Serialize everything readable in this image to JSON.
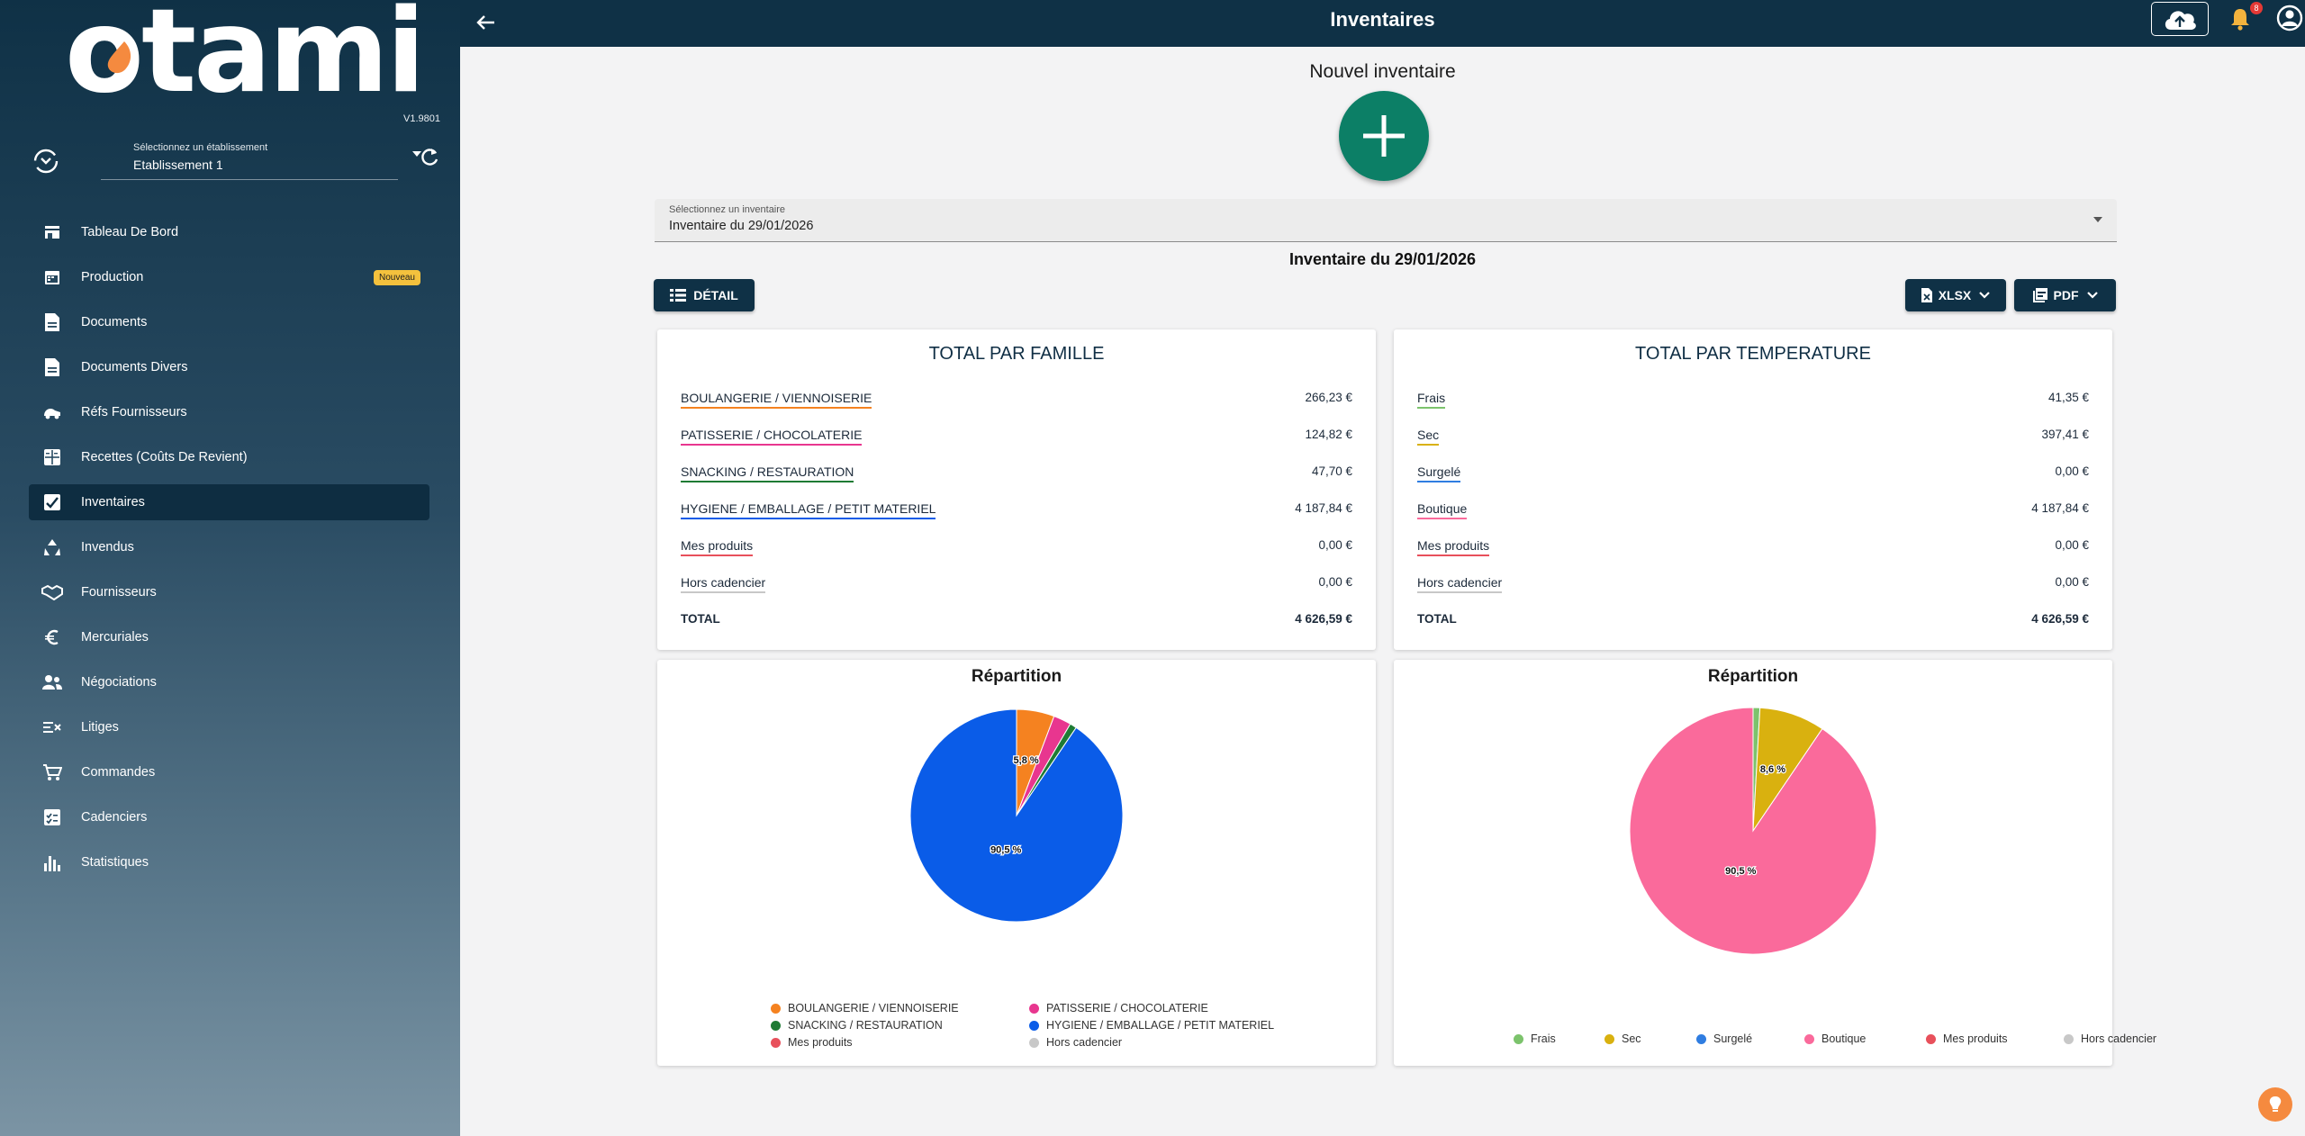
{
  "app": {
    "logo_text": "otami",
    "version": "V1.9801",
    "establishment_label": "Sélectionnez un établissement",
    "establishment_value": "Etablissement 1"
  },
  "sidebar": {
    "items": [
      {
        "label": "Tableau De Bord",
        "icon": "store-icon"
      },
      {
        "label": "Production",
        "icon": "calendar-icon",
        "badge": "Nouveau"
      },
      {
        "label": "Documents",
        "icon": "document-icon"
      },
      {
        "label": "Documents Divers",
        "icon": "document-icon"
      },
      {
        "label": "Réfs Fournisseurs",
        "icon": "truck-icon"
      },
      {
        "label": "Recettes (Coûts De Revient)",
        "icon": "calculator-icon"
      },
      {
        "label": "Inventaires",
        "icon": "checklist-icon",
        "active": true
      },
      {
        "label": "Invendus",
        "icon": "recycle-icon"
      },
      {
        "label": "Fournisseurs",
        "icon": "handshake-icon"
      },
      {
        "label": "Mercuriales",
        "icon": "euro-icon"
      },
      {
        "label": "Négociations",
        "icon": "people-icon"
      },
      {
        "label": "Litiges",
        "icon": "dispute-icon"
      },
      {
        "label": "Commandes",
        "icon": "cart-icon"
      },
      {
        "label": "Cadenciers",
        "icon": "schedule-icon"
      },
      {
        "label": "Statistiques",
        "icon": "bar-chart-icon"
      }
    ]
  },
  "topbar": {
    "title": "Inventaires",
    "notifications_count": "8"
  },
  "main": {
    "new_inventory_title": "Nouvel inventaire",
    "select_label": "Sélectionnez un inventaire",
    "select_value": "Inventaire du 29/01/2026",
    "heading": "Inventaire du 29/01/2026",
    "detail_label": "DÉTAIL",
    "xlsx_label": "XLSX",
    "pdf_label": "PDF"
  },
  "famille": {
    "title": "TOTAL PAR FAMILLE",
    "rows": [
      {
        "label": "BOULANGERIE / VIENNOISERIE",
        "value": "266,23 €",
        "color": "#f58220"
      },
      {
        "label": "PATISSERIE / CHOCOLATERIE",
        "value": "124,82 €",
        "color": "#e8368f"
      },
      {
        "label": "SNACKING / RESTAURATION",
        "value": "47,70 €",
        "color": "#1e7b34"
      },
      {
        "label": "HYGIENE / EMBALLAGE / PETIT MATERIEL",
        "value": "4 187,84 €",
        "color": "#0a5ce8"
      },
      {
        "label": "Mes produits",
        "value": "0,00 €",
        "color": "#e8505b"
      },
      {
        "label": "Hors cadencier",
        "value": "0,00 €",
        "color": "#c8c8c8"
      }
    ],
    "total_label": "TOTAL",
    "total_value": "4 626,59 €"
  },
  "temperature": {
    "title": "TOTAL PAR TEMPERATURE",
    "rows": [
      {
        "label": "Frais",
        "value": "41,35 €",
        "color": "#7cc36c"
      },
      {
        "label": "Sec",
        "value": "397,41 €",
        "color": "#d9b10f"
      },
      {
        "label": "Surgelé",
        "value": "0,00 €",
        "color": "#2f7de1"
      },
      {
        "label": "Boutique",
        "value": "4 187,84 €",
        "color": "#fa6a9b"
      },
      {
        "label": "Mes produits",
        "value": "0,00 €",
        "color": "#e8505b"
      },
      {
        "label": "Hors cadencier",
        "value": "0,00 €",
        "color": "#c8c8c8"
      }
    ],
    "total_label": "TOTAL",
    "total_value": "4 626,59 €"
  },
  "chart_data": [
    {
      "type": "pie",
      "title": "Répartition",
      "categories": [
        "BOULANGERIE / VIENNOISERIE",
        "PATISSERIE / CHOCOLATERIE",
        "SNACKING / RESTAURATION",
        "HYGIENE / EMBALLAGE / PETIT MATERIEL",
        "Mes produits",
        "Hors cadencier"
      ],
      "values": [
        266.23,
        124.82,
        47.7,
        4187.84,
        0,
        0
      ],
      "colors": [
        "#f58220",
        "#e8368f",
        "#1e7b34",
        "#0a5ce8",
        "#e8505b",
        "#c8c8c8"
      ],
      "data_labels": [
        {
          "index": 0,
          "text": "5,8 %"
        },
        {
          "index": 3,
          "text": "90,5 %"
        }
      ],
      "legend": "bottom"
    },
    {
      "type": "pie",
      "title": "Répartition",
      "categories": [
        "Frais",
        "Sec",
        "Surgelé",
        "Boutique",
        "Mes produits",
        "Hors cadencier"
      ],
      "values": [
        41.35,
        397.41,
        0,
        4187.84,
        0,
        0
      ],
      "colors": [
        "#7cc36c",
        "#d9b10f",
        "#2f7de1",
        "#fa6a9b",
        "#e8505b",
        "#c8c8c8"
      ],
      "data_labels": [
        {
          "index": 1,
          "text": "8,6 %"
        },
        {
          "index": 3,
          "text": "90,5 %"
        }
      ],
      "legend": "bottom"
    }
  ]
}
